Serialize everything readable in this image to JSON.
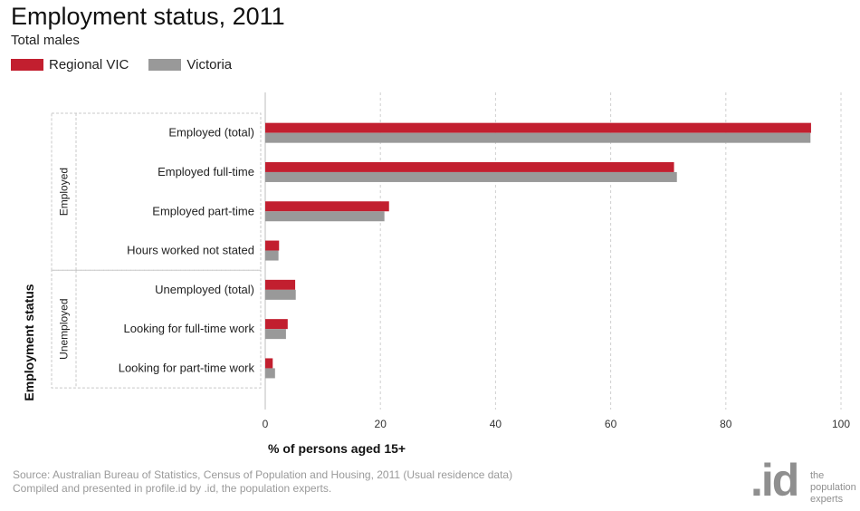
{
  "chart_data": {
    "type": "bar",
    "orientation": "horizontal",
    "title": "Employment status, 2011",
    "subtitle": "Total males",
    "xlabel": "% of persons aged 15+",
    "ylabel": "Employment status",
    "xlim": [
      0,
      100
    ],
    "x_ticks": [
      "0",
      "20",
      "40",
      "60",
      "80",
      "100"
    ],
    "x_tick_values": [
      0,
      20,
      40,
      60,
      80,
      100
    ],
    "grid": true,
    "legend_position": "top-left",
    "groups": [
      {
        "label": "Employed",
        "categories": [
          "Employed (total)",
          "Employed full-time",
          "Employed part-time",
          "Hours worked not stated"
        ]
      },
      {
        "label": "Unemployed",
        "categories": [
          "Unemployed (total)",
          "Looking for full-time work",
          "Looking for part-time work"
        ]
      }
    ],
    "categories": [
      "Employed (total)",
      "Employed full-time",
      "Employed part-time",
      "Hours worked not stated",
      "Unemployed (total)",
      "Looking for full-time work",
      "Looking for part-time work"
    ],
    "series": [
      {
        "name": "Regional VIC",
        "color": "#c21f2f",
        "values": [
          94.8,
          71.0,
          21.5,
          2.4,
          5.2,
          3.9,
          1.3
        ]
      },
      {
        "name": "Victoria",
        "color": "#999999",
        "values": [
          94.7,
          71.5,
          20.7,
          2.3,
          5.3,
          3.6,
          1.7
        ]
      }
    ]
  },
  "source": {
    "line1": "Source: Australian Bureau of Statistics, Census of Population and Housing, 2011 (Usual residence data)",
    "line2": "Compiled and presented in profile.id by .id, the population experts."
  },
  "logo": {
    "mark": ".id",
    "line1": "the",
    "line2": "population",
    "line3": "experts"
  }
}
